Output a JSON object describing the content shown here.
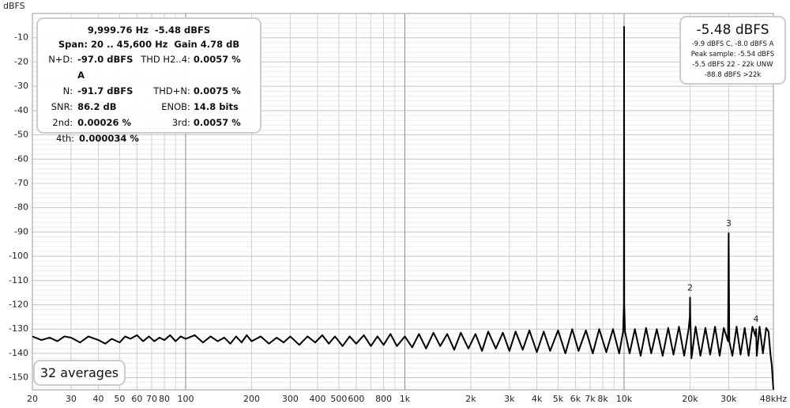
{
  "chart_data": {
    "type": "line",
    "y_label": "dBFS",
    "color": "#000000",
    "xscale": "log",
    "grid": true,
    "xlim": [
      20,
      48000
    ],
    "ylim": [
      -155,
      0
    ],
    "xticks": [
      20,
      30,
      40,
      50,
      60,
      70,
      80,
      100,
      200,
      300,
      400,
      500,
      600,
      800,
      {
        "value": 1000,
        "label": "1k"
      },
      {
        "value": 2000,
        "label": "2k"
      },
      {
        "value": 3000,
        "label": "3k"
      },
      {
        "value": 4000,
        "label": "4k"
      },
      {
        "value": 5000,
        "label": "5k"
      },
      {
        "value": 6000,
        "label": "6k"
      },
      {
        "value": 7000,
        "label": "7k"
      },
      {
        "value": 8000,
        "label": "8k"
      },
      {
        "value": 10000,
        "label": "10k"
      },
      {
        "value": 20000,
        "label": "20k"
      },
      {
        "value": 30000,
        "label": "30k"
      },
      {
        "value": 48000,
        "label": "48kHz"
      }
    ],
    "xgrid_minor": [
      90,
      700,
      900,
      9000,
      40000
    ],
    "yticks": [
      -10,
      -20,
      -30,
      -40,
      -50,
      -60,
      -70,
      -80,
      -90,
      -100,
      -110,
      -120,
      -130,
      -140,
      -150
    ],
    "ygrid_minor_step": 2,
    "x": [
      20,
      22,
      24,
      26,
      28,
      30,
      33,
      36,
      40,
      43,
      46,
      50,
      53,
      56,
      60,
      64,
      68,
      72,
      76,
      80,
      85,
      90,
      95,
      100,
      110,
      120,
      130,
      140,
      150,
      160,
      170,
      180,
      190,
      200,
      220,
      240,
      260,
      280,
      300,
      330,
      360,
      390,
      420,
      450,
      480,
      520,
      560,
      600,
      650,
      700,
      750,
      800,
      860,
      920,
      1000,
      1080,
      1160,
      1250,
      1350,
      1450,
      1560,
      1680,
      1800,
      1950,
      2100,
      2250,
      2400,
      2600,
      2800,
      3000,
      3200,
      3450,
      3700,
      4000,
      4300,
      4600,
      5000,
      5400,
      5800,
      6200,
      6700,
      7200,
      7700,
      8300,
      8900,
      9500,
      9900,
      9980,
      10000,
      10020,
      10100,
      10600,
      11200,
      11900,
      12600,
      13300,
      14100,
      15000,
      15900,
      16800,
      17800,
      18800,
      19700,
      19950,
      20000,
      20050,
      20300,
      21200,
      22300,
      23500,
      24700,
      26000,
      27300,
      28500,
      29800,
      30000,
      30200,
      31200,
      32600,
      34000,
      35500,
      37000,
      38500,
      39800,
      40000,
      40300,
      41500,
      43000,
      44500,
      45600,
      46500,
      47200,
      48000
    ],
    "values": [
      -133,
      -134.5,
      -133.5,
      -135,
      -133,
      -133.5,
      -135.5,
      -133,
      -134.5,
      -136,
      -134,
      -135.5,
      -133,
      -134,
      -132.5,
      -135,
      -133,
      -135,
      -133.5,
      -134.5,
      -132.5,
      -135,
      -133,
      -134,
      -132.5,
      -135.5,
      -133,
      -135,
      -133.5,
      -136,
      -133,
      -135.5,
      -132.5,
      -135,
      -133,
      -136,
      -133.5,
      -135.5,
      -133,
      -136.5,
      -133,
      -135.5,
      -132.5,
      -136,
      -133,
      -137,
      -133,
      -136,
      -132.5,
      -137,
      -133,
      -136.5,
      -132,
      -137,
      -133,
      -137.5,
      -132,
      -138,
      -131.5,
      -137,
      -132,
      -138.5,
      -131.5,
      -138,
      -132,
      -139,
      -131,
      -138,
      -131.5,
      -139,
      -131,
      -138.5,
      -130.5,
      -139.5,
      -131,
      -139,
      -130.5,
      -140,
      -130,
      -139,
      -130.5,
      -140,
      -130,
      -139.5,
      -130,
      -140,
      -131,
      -120,
      -5.48,
      -120,
      -131,
      -140,
      -130,
      -141,
      -129.5,
      -140,
      -130,
      -141,
      -129.5,
      -140.5,
      -129,
      -141,
      -130,
      -125,
      -117,
      -125,
      -142,
      -129,
      -141,
      -129.5,
      -140.5,
      -129,
      -141,
      -129.5,
      -135,
      -90.5,
      -135,
      -141,
      -129,
      -140.5,
      -129.5,
      -141,
      -129,
      -133,
      -130,
      -141,
      -129,
      -140,
      -129.5,
      -131,
      -140,
      -145,
      -155
    ],
    "harmonic_labels": [
      {
        "label": "2",
        "x": 20000,
        "y": -117
      },
      {
        "label": "3",
        "x": 30000,
        "y": -90.5
      },
      {
        "label": "4",
        "x": 40000,
        "y": -130
      }
    ]
  },
  "info_panel": {
    "header": [
      "9,999.76 Hz  -5.48 dBFS",
      "Span: 20 .. 45,600 Hz  Gain 4.78 dB"
    ],
    "rows": [
      [
        "N+D:",
        "-97.0 dBFS A",
        "THD H2..4:",
        "0.0057 %"
      ],
      [
        "N:",
        "-91.7 dBFS",
        "THD+N:",
        "0.0075 %"
      ],
      [
        "SNR:",
        "86.2 dB",
        "ENOB:",
        "14.8 bits"
      ],
      [
        "2nd:",
        "0.00026 %",
        "3rd:",
        "0.0057 %"
      ],
      [
        "4th:",
        "0.000034 %"
      ]
    ]
  },
  "level_panel": {
    "main": "-5.48 dBFS",
    "lines": [
      "-9.9 dBFS C, -8.0 dBFS A",
      "Peak sample: -5.54 dBFS",
      "-5.5 dBFS 22 - 22k UNW",
      "-88.8 dBFS >22k"
    ]
  },
  "averages": "32 averages"
}
